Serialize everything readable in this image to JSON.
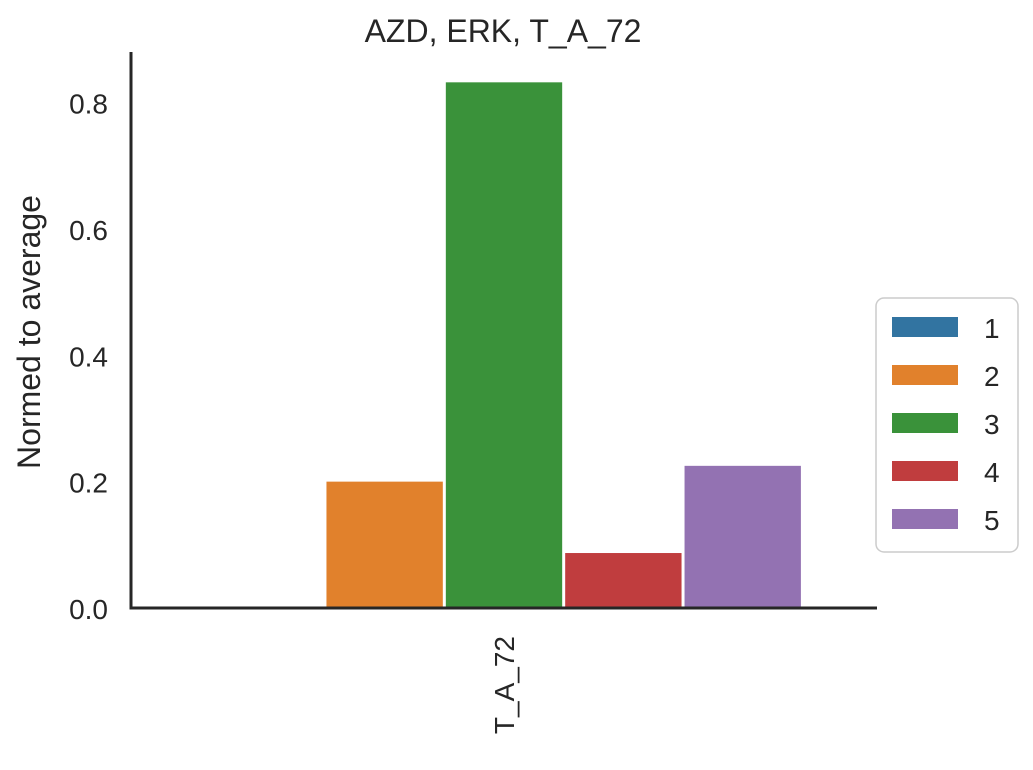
{
  "chart_data": {
    "type": "bar",
    "title": "AZD, ERK, T_A_72",
    "xlabel": "",
    "ylabel": "Normed to average",
    "categories": [
      "T_A_72"
    ],
    "series": [
      {
        "name": "1",
        "values": [
          0.0
        ],
        "color": "#3274a1"
      },
      {
        "name": "2",
        "values": [
          0.2
        ],
        "color": "#e1812c"
      },
      {
        "name": "3",
        "values": [
          0.832
        ],
        "color": "#3a923a"
      },
      {
        "name": "4",
        "values": [
          0.087
        ],
        "color": "#c03d3e"
      },
      {
        "name": "5",
        "values": [
          0.225
        ],
        "color": "#9372b2"
      }
    ],
    "ylim": [
      0,
      0.88
    ],
    "yticks": [
      {
        "value": 0.0,
        "label": "0.0"
      },
      {
        "value": 0.2,
        "label": "0.2"
      },
      {
        "value": 0.4,
        "label": "0.4"
      },
      {
        "value": 0.6,
        "label": "0.6"
      },
      {
        "value": 0.8,
        "label": "0.8"
      }
    ],
    "grid": false,
    "legend_position": "right"
  }
}
